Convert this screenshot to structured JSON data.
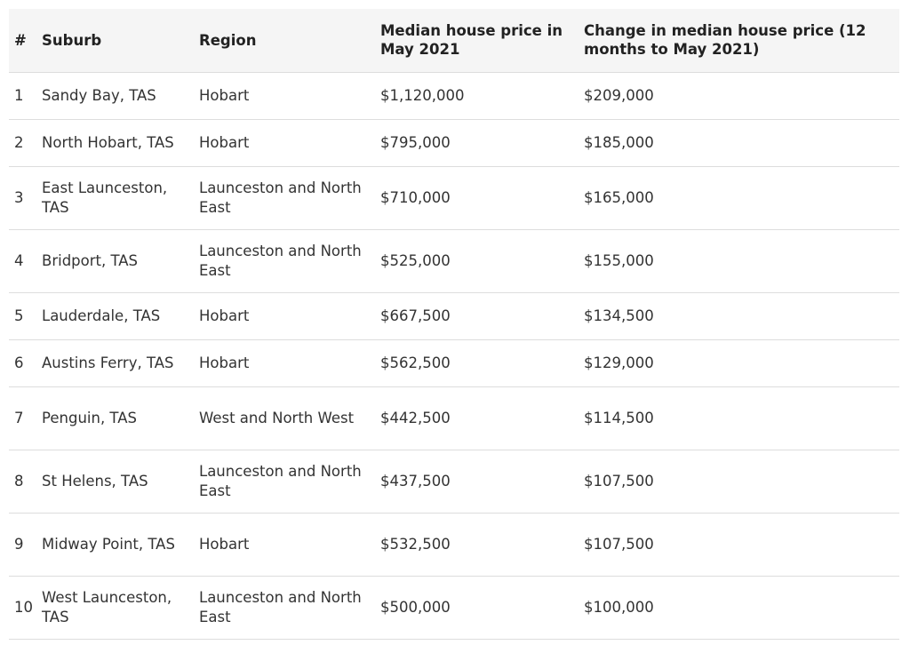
{
  "table": {
    "headers": {
      "num": "#",
      "suburb": "Suburb",
      "region": "Region",
      "price": "Median house price in May 2021",
      "change": "Change in median house price (12 months to May 2021)"
    },
    "rows": [
      {
        "num": "1",
        "suburb": "Sandy Bay, TAS",
        "region": "Hobart",
        "price": "$1,120,000",
        "change": "$209,000"
      },
      {
        "num": "2",
        "suburb": "North Hobart, TAS",
        "region": "Hobart",
        "price": "$795,000",
        "change": "$185,000"
      },
      {
        "num": "3",
        "suburb": "East Launceston, TAS",
        "region": "Launceston and North East",
        "price": "$710,000",
        "change": "$165,000"
      },
      {
        "num": "4",
        "suburb": "Bridport, TAS",
        "region": "Launceston and North East",
        "price": "$525,000",
        "change": "$155,000"
      },
      {
        "num": "5",
        "suburb": "Lauderdale, TAS",
        "region": "Hobart",
        "price": "$667,500",
        "change": "$134,500"
      },
      {
        "num": "6",
        "suburb": "Austins Ferry, TAS",
        "region": "Hobart",
        "price": "$562,500",
        "change": "$129,000"
      },
      {
        "num": "7",
        "suburb": "Penguin, TAS",
        "region": "West and North West",
        "price": "$442,500",
        "change": "$114,500"
      },
      {
        "num": "8",
        "suburb": "St Helens, TAS",
        "region": "Launceston and North East",
        "price": "$437,500",
        "change": "$107,500"
      },
      {
        "num": "9",
        "suburb": "Midway Point, TAS",
        "region": "Hobart",
        "price": "$532,500",
        "change": "$107,500"
      },
      {
        "num": "10",
        "suburb": "West Launceston, TAS",
        "region": "Launceston and North East",
        "price": "$500,000",
        "change": "$100,000"
      }
    ]
  }
}
